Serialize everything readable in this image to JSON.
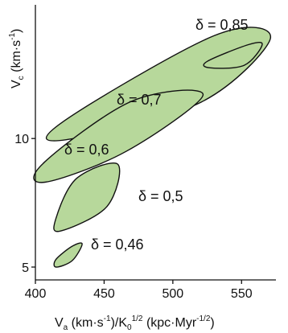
{
  "chart_data": {
    "type": "scatter",
    "title": "",
    "xlabel": {
      "main": "V",
      "main_sub": "a",
      "unit_open": " (km·s",
      "unit_sup1": "-1",
      "unit_mid": ")/K",
      "k_sub": "0",
      "k_sup": "1/2",
      "unit_tail": " (kpc·Myr",
      "unit_sup2": "-1/2",
      "unit_close": ")"
    },
    "ylabel": {
      "main": "V",
      "main_sub": "c",
      "unit_open": " (km·s",
      "unit_sup": "-1",
      "unit_close": ")"
    },
    "xlim": [
      400,
      575
    ],
    "ylim": [
      4.5,
      15.2
    ],
    "x_ticks": [
      400,
      450,
      500,
      550
    ],
    "x_tick_labels": [
      "400",
      "450",
      "500",
      "550"
    ],
    "y_ticks": [
      5,
      10
    ],
    "y_tick_labels": [
      "5",
      "10"
    ],
    "grid": false,
    "fill_color": "#b7d89b",
    "stroke_color": "#111111",
    "series": [
      {
        "delta_label": "δ = 0,46",
        "outline": [
          [
            415,
            5.3
          ],
          [
            426.5,
            5.8
          ],
          [
            434,
            5.9
          ],
          [
            426.8,
            5.25
          ],
          [
            415,
            5.0
          ]
        ]
      },
      {
        "delta_label": "δ = 0,5",
        "outline": [
          [
            415,
            6.9
          ],
          [
            430,
            8.45
          ],
          [
            460,
            9.0
          ],
          [
            452,
            7.35
          ],
          [
            418,
            6.4
          ]
        ]
      },
      {
        "delta_label": "δ = 0,6",
        "outline": [
          [
            406,
            9.05
          ],
          [
            470,
            11.45
          ],
          [
            522,
            11.7
          ],
          [
            466,
            9.5
          ],
          [
            407,
            8.3
          ]
        ]
      },
      {
        "delta_label": "δ = 0,7",
        "outline": [
          [
            420,
            10.65
          ],
          [
            530,
            14.0
          ],
          [
            571,
            13.9
          ],
          [
            520,
            11.4
          ],
          [
            422,
            9.95
          ]
        ]
      },
      {
        "delta_label": "δ = 0,85",
        "outline": [
          [
            525,
            13.0
          ],
          [
            555,
            13.65
          ],
          [
            565,
            13.65
          ],
          [
            552,
            12.85
          ],
          [
            527,
            12.75
          ]
        ]
      }
    ]
  }
}
